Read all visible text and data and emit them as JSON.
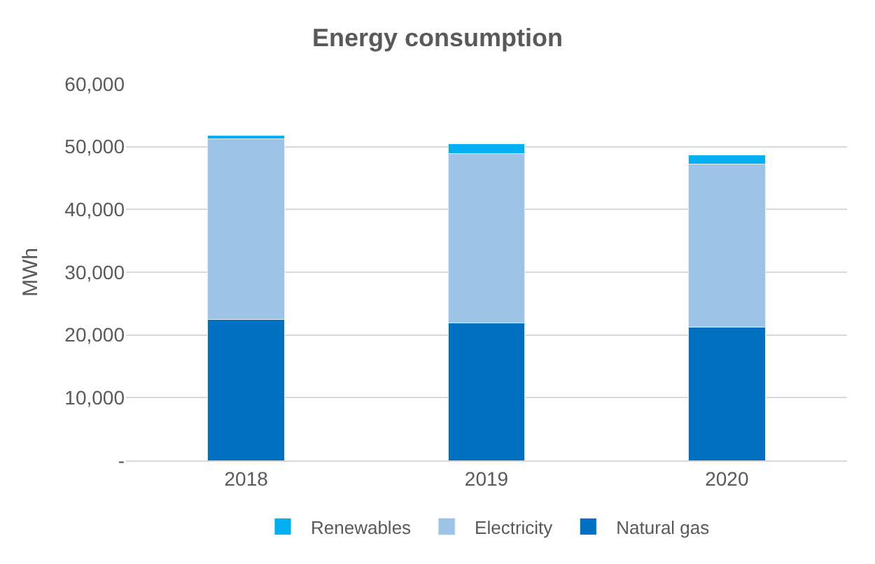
{
  "chart_data": {
    "type": "bar",
    "stacked": true,
    "title": "Energy consumption",
    "ylabel": "MWh",
    "categories": [
      "2018",
      "2019",
      "2020"
    ],
    "series": [
      {
        "name": "Natural gas",
        "color": "#0070c0",
        "values": [
          22500,
          21900,
          21300
        ]
      },
      {
        "name": "Electricity",
        "color": "#9dc3e6",
        "values": [
          28750,
          27000,
          25900
        ]
      },
      {
        "name": "Renewables",
        "color": "#00b0f0",
        "values": [
          500,
          1600,
          1500
        ]
      }
    ],
    "ylim": [
      0,
      60000
    ],
    "yticks": [
      {
        "value": 0,
        "label": "-"
      },
      {
        "value": 10000,
        "label": "10,000"
      },
      {
        "value": 20000,
        "label": "20,000"
      },
      {
        "value": 30000,
        "label": "30,000"
      },
      {
        "value": 40000,
        "label": "40,000"
      },
      {
        "value": 50000,
        "label": "50,000"
      },
      {
        "value": 60000,
        "label": "60,000"
      }
    ],
    "grid": "y",
    "legend": "bottom"
  }
}
